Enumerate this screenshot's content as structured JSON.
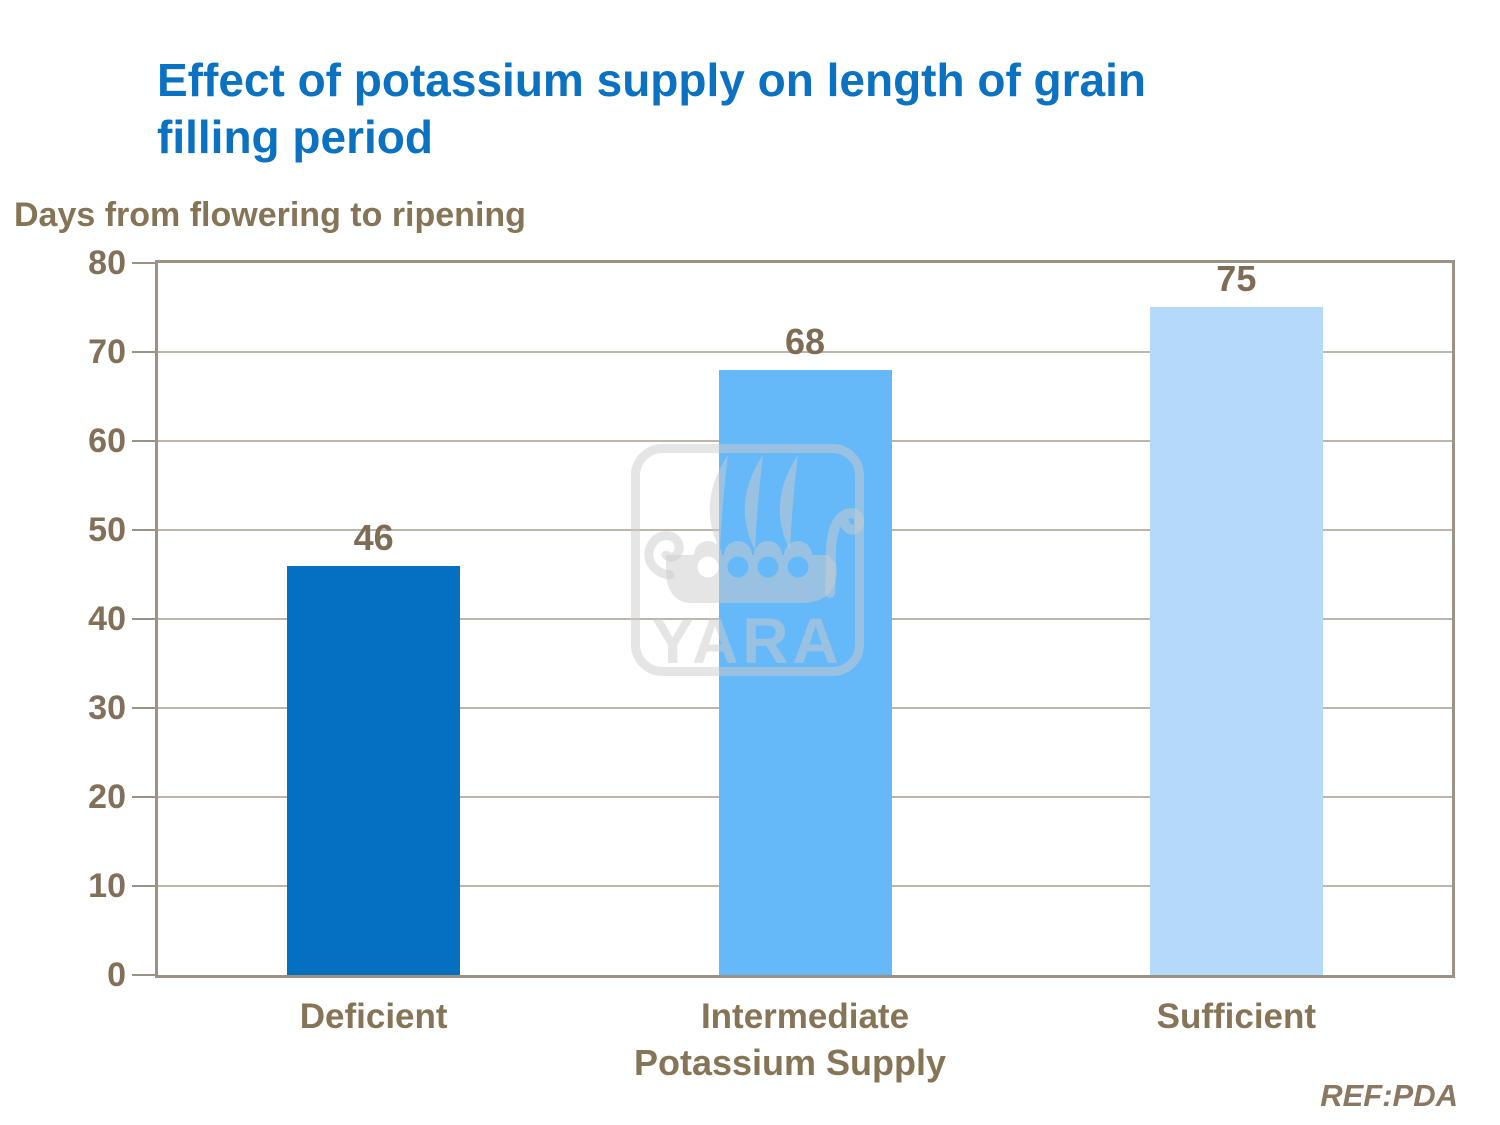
{
  "header": {
    "title_line1": "Effect of potassium supply on length of grain",
    "title_line2": "filling period"
  },
  "footer": {
    "ref": "REF:PDA"
  },
  "watermark": {
    "wordmark": "YARA",
    "icon": "viking-ship-icon"
  },
  "colors": {
    "title_blue": "#0B71C1",
    "text_taupe": "#867457",
    "frame": "#9B9184",
    "gridline": "#BFB5A8",
    "bar_deficient": "#0670C0",
    "bar_intermediate": "#66B9F9",
    "bar_sufficient": "#B5D9F8",
    "watermark": "rgba(203,203,203,0.5)"
  },
  "chart_data": {
    "type": "bar",
    "title": "Effect of potassium supply on length of grain filling period",
    "ylabel": "Days from flowering to ripening",
    "xlabel": "Potassium Supply",
    "categories": [
      "Deficient",
      "Intermediate",
      "Sufficient"
    ],
    "values": [
      46,
      68,
      75
    ],
    "data_labels": [
      "46",
      "68",
      "75"
    ],
    "bar_colors": [
      "#0670C0",
      "#66B9F9",
      "#B5D9F8"
    ],
    "ylim": [
      0,
      80
    ],
    "ytick_step": 10,
    "yticks": [
      "0",
      "10",
      "20",
      "30",
      "40",
      "50",
      "60",
      "70",
      "80"
    ],
    "grid": true,
    "legend_position": "none"
  }
}
